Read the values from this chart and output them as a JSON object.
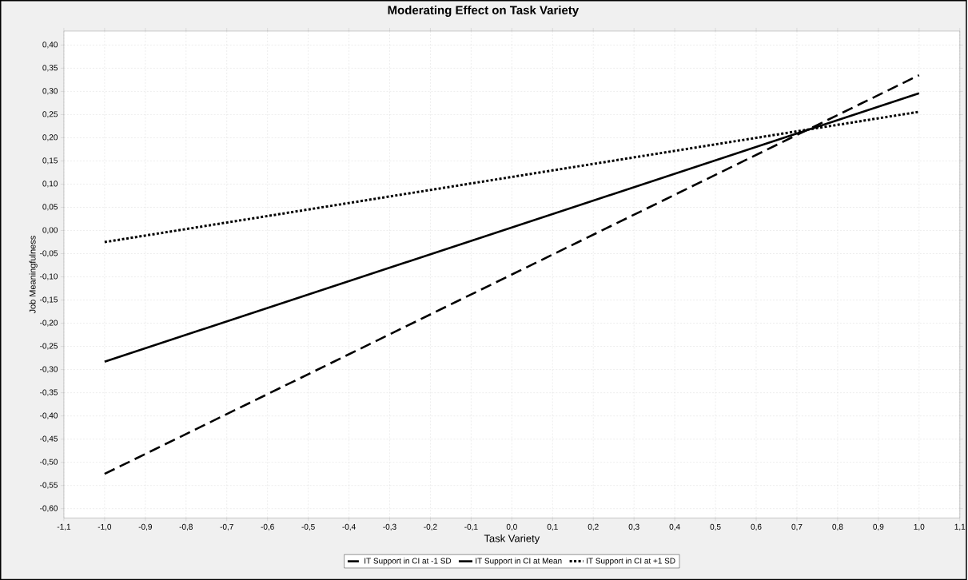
{
  "chart_data": {
    "type": "line",
    "title": "Moderating Effect on Task Variety",
    "xlabel": "Task Variety",
    "ylabel": "Job Meaningfulness",
    "x": [
      -1.0,
      1.0
    ],
    "series": [
      {
        "name": "IT Support in CI at -1 SD",
        "color": "#000000",
        "line_style": "dashed",
        "values": [
          -0.525,
          0.335
        ]
      },
      {
        "name": "IT Support in CI at Mean",
        "color": "#000000",
        "line_style": "solid",
        "values": [
          -0.283,
          0.296
        ]
      },
      {
        "name": "IT Support in CI at +1 SD",
        "color": "#000000",
        "line_style": "dotted",
        "values": [
          -0.025,
          0.256
        ]
      }
    ],
    "xlim": [
      -1.1,
      1.1
    ],
    "ylim": [
      -0.62,
      0.43
    ],
    "xticks": [
      {
        "value": -1.1,
        "label": "-1,1"
      },
      {
        "value": -1.0,
        "label": "-1,0"
      },
      {
        "value": -0.9,
        "label": "-0,9"
      },
      {
        "value": -0.8,
        "label": "-0,8"
      },
      {
        "value": -0.7,
        "label": "-0,7"
      },
      {
        "value": -0.6,
        "label": "-0,6"
      },
      {
        "value": -0.5,
        "label": "-0,5"
      },
      {
        "value": -0.4,
        "label": "-0,4"
      },
      {
        "value": -0.3,
        "label": "-0,3"
      },
      {
        "value": -0.2,
        "label": "-0,2"
      },
      {
        "value": -0.1,
        "label": "-0,1"
      },
      {
        "value": 0.0,
        "label": "0,0"
      },
      {
        "value": 0.1,
        "label": "0,1"
      },
      {
        "value": 0.2,
        "label": "0,2"
      },
      {
        "value": 0.3,
        "label": "0,3"
      },
      {
        "value": 0.4,
        "label": "0,4"
      },
      {
        "value": 0.5,
        "label": "0,5"
      },
      {
        "value": 0.6,
        "label": "0,6"
      },
      {
        "value": 0.7,
        "label": "0,7"
      },
      {
        "value": 0.8,
        "label": "0,8"
      },
      {
        "value": 0.9,
        "label": "0,9"
      },
      {
        "value": 1.0,
        "label": "1,0"
      },
      {
        "value": 1.1,
        "label": "1,1"
      }
    ],
    "yticks": [
      {
        "value": -0.6,
        "label": "-0,60"
      },
      {
        "value": -0.55,
        "label": "-0,55"
      },
      {
        "value": -0.5,
        "label": "-0,50"
      },
      {
        "value": -0.45,
        "label": "-0,45"
      },
      {
        "value": -0.4,
        "label": "-0,40"
      },
      {
        "value": -0.35,
        "label": "-0,35"
      },
      {
        "value": -0.3,
        "label": "-0,30"
      },
      {
        "value": -0.25,
        "label": "-0,25"
      },
      {
        "value": -0.2,
        "label": "-0,20"
      },
      {
        "value": -0.15,
        "label": "-0,15"
      },
      {
        "value": -0.1,
        "label": "-0,10"
      },
      {
        "value": -0.05,
        "label": "-0,05"
      },
      {
        "value": 0.0,
        "label": "0,00"
      },
      {
        "value": 0.05,
        "label": "0,05"
      },
      {
        "value": 0.1,
        "label": "0,10"
      },
      {
        "value": 0.15,
        "label": "0,15"
      },
      {
        "value": 0.2,
        "label": "0,20"
      },
      {
        "value": 0.25,
        "label": "0,25"
      },
      {
        "value": 0.3,
        "label": "0,30"
      },
      {
        "value": 0.35,
        "label": "0,35"
      },
      {
        "value": 0.4,
        "label": "0,40"
      }
    ],
    "grid": true,
    "legend": "bottom",
    "marker": "none"
  }
}
